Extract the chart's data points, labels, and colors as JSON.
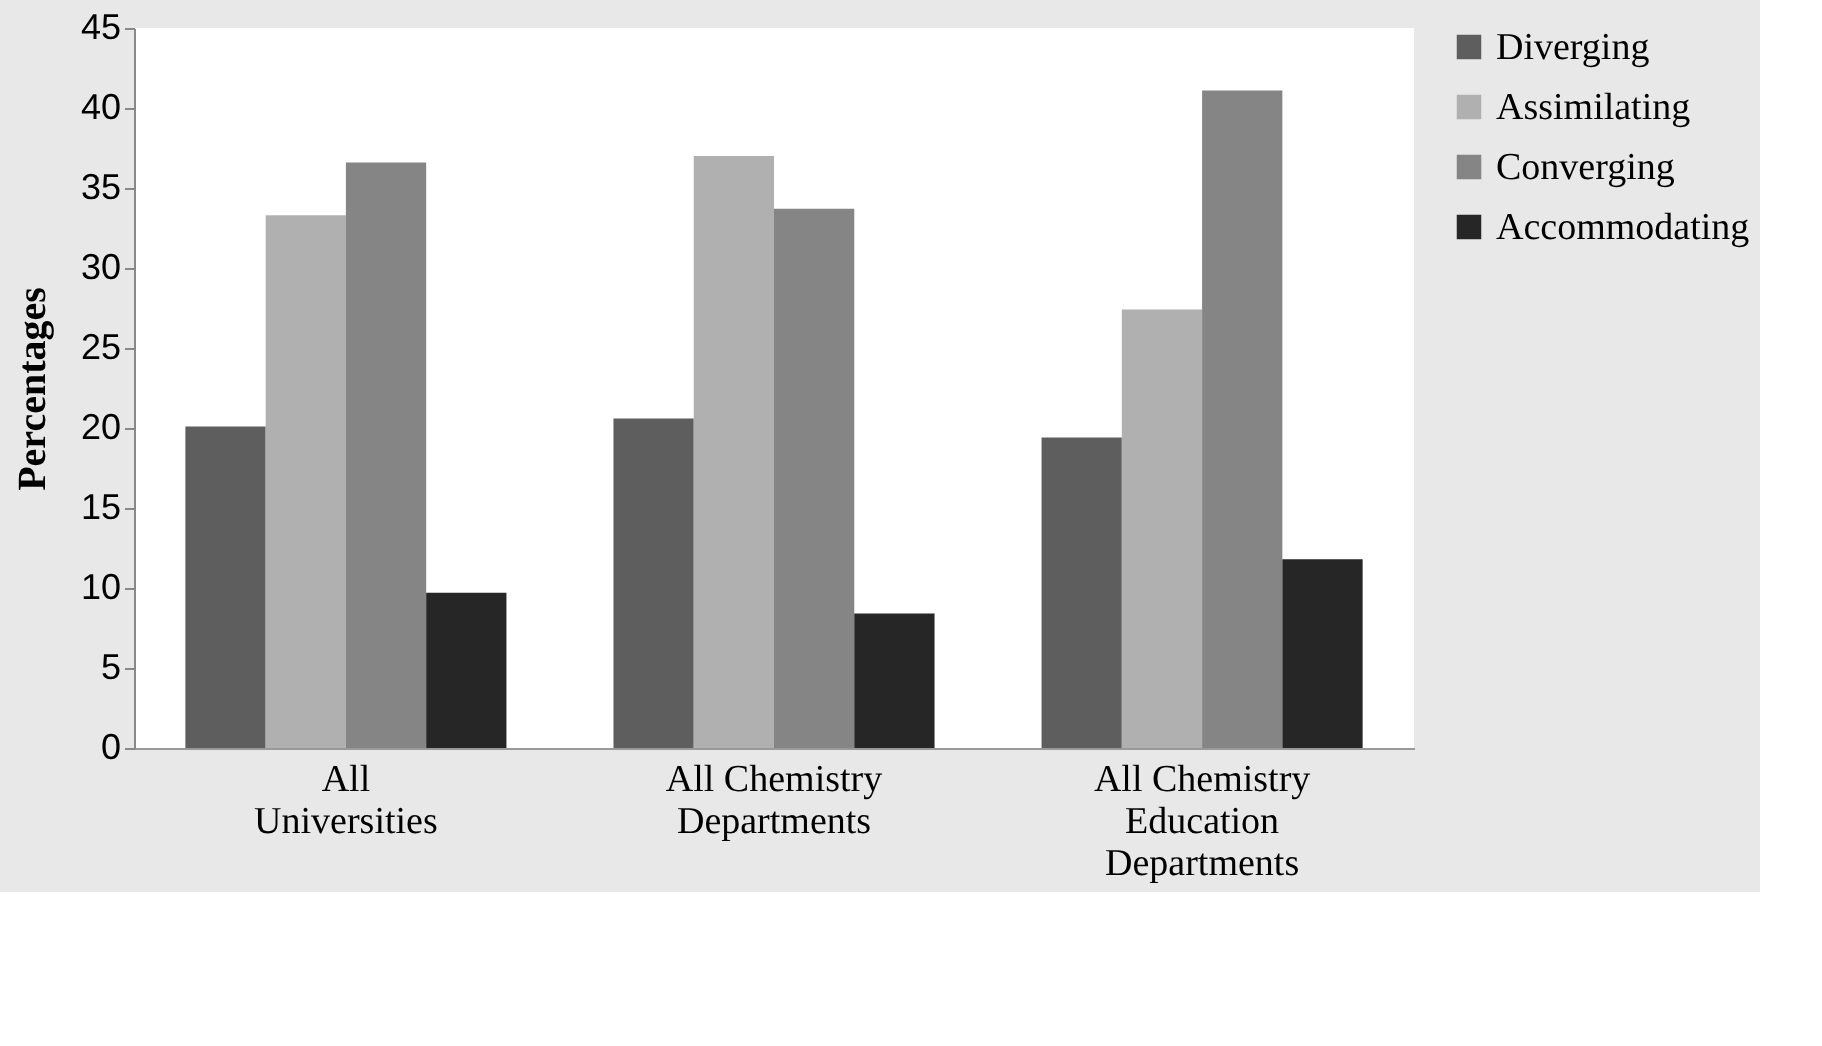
{
  "chart_data": {
    "type": "bar",
    "ylabel": "Percentages",
    "categories": [
      "All Universities",
      "All Chemistry Departments",
      "All Chemistry Education Departments"
    ],
    "series": [
      {
        "name": "Diverging",
        "color": "#5e5e5e",
        "values": [
          20.1,
          20.6,
          19.4
        ]
      },
      {
        "name": "Assimilating",
        "color": "#b0b0b0",
        "values": [
          33.3,
          37.0,
          27.4
        ]
      },
      {
        "name": "Converging",
        "color": "#858585",
        "values": [
          36.6,
          33.7,
          41.1
        ]
      },
      {
        "name": "Accommodating",
        "color": "#262626",
        "values": [
          9.7,
          8.4,
          11.8
        ]
      }
    ],
    "ylim": [
      0,
      45
    ],
    "yticks": [
      0,
      5,
      10,
      15,
      20,
      25,
      30,
      35,
      40,
      45
    ],
    "grid": false,
    "legend": "right"
  }
}
